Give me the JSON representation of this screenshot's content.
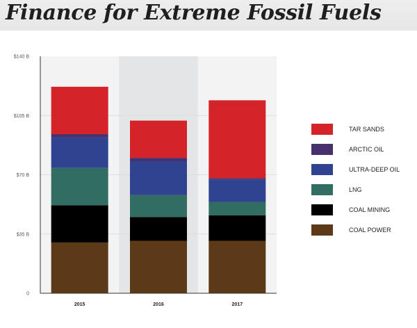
{
  "header": {
    "title": "Finance for Extreme Fossil Fuels"
  },
  "colors": {
    "background": "#ffffff",
    "plot_background": "#f3f3f3",
    "highlight_band": "#e4e5e7",
    "gridline": "#dddddd",
    "axis": "#333333"
  },
  "chart_data": {
    "type": "bar",
    "stacked": true,
    "title": "Finance for Extreme Fossil Fuels",
    "xlabel": "",
    "ylabel": "",
    "categories": [
      "2015",
      "2016",
      "2017"
    ],
    "highlighted_category": "2016",
    "ylim": [
      0,
      140
    ],
    "y_ticks": [
      0,
      35,
      70,
      105,
      140
    ],
    "y_tick_labels": [
      "0",
      "$35 B",
      "$70 B",
      "$105 B",
      "$140 B"
    ],
    "grid": true,
    "legend_position": "right",
    "series": [
      {
        "name": "COAL POWER",
        "color": "#5c3a17",
        "values": [
          30,
          31,
          31
        ]
      },
      {
        "name": "COAL MINING",
        "color": "#000000",
        "values": [
          22,
          14,
          15
        ]
      },
      {
        "name": "LNG",
        "color": "#316d63",
        "values": [
          22,
          13,
          8
        ]
      },
      {
        "name": "ULTRA-DEEP OIL",
        "color": "#2f4391",
        "values": [
          18,
          20,
          13
        ]
      },
      {
        "name": "ARCTIC OIL",
        "color": "#46306e",
        "values": [
          2,
          2,
          1
        ]
      },
      {
        "name": "TAR SANDS",
        "color": "#d5232a",
        "values": [
          28,
          22,
          46
        ]
      }
    ]
  }
}
